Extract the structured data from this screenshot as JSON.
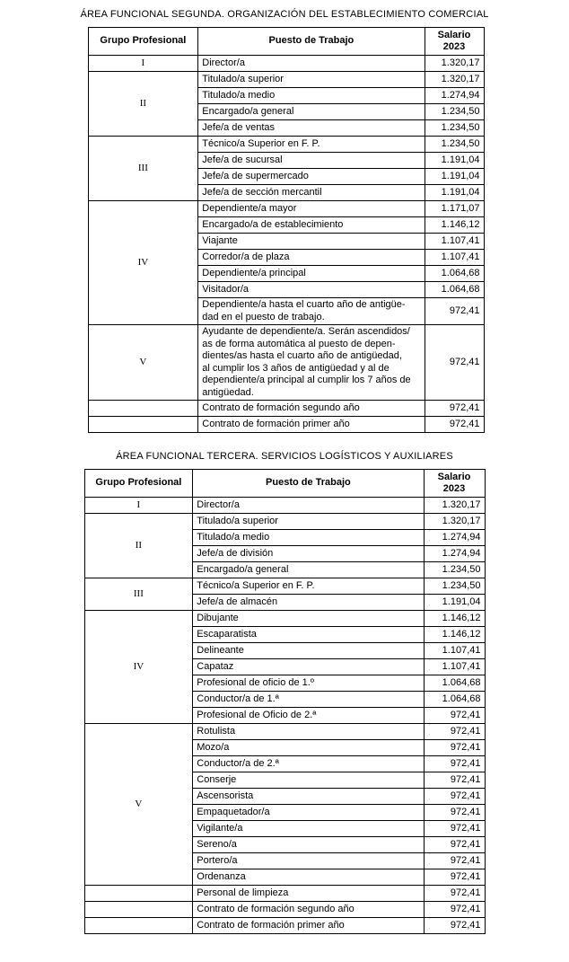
{
  "sections": [
    {
      "title": "ÁREA FUNCIONAL SEGUNDA. ORGANIZACIÓN DEL ESTABLECIMIENTO COMERCIAL",
      "headers": [
        "Grupo Profesional",
        "Puesto de Trabajo",
        "Salario\n2023"
      ],
      "groups": [
        {
          "group": "I",
          "rows": [
            [
              "Director/a",
              "1.320,17"
            ]
          ]
        },
        {
          "group": "II",
          "rows": [
            [
              "Titulado/a superior",
              "1.320,17"
            ],
            [
              "Titulado/a medio",
              "1.274,94"
            ],
            [
              "Encargado/a general",
              "1.234,50"
            ],
            [
              "Jefe/a de ventas",
              "1.234,50"
            ]
          ]
        },
        {
          "group": "III",
          "rows": [
            [
              "Técnico/a Superior en F. P.",
              "1.234,50"
            ],
            [
              "Jefe/a de sucursal",
              "1.191,04"
            ],
            [
              "Jefe/a de supermercado",
              "1.191,04"
            ],
            [
              "Jefe/a de sección mercantil",
              "1.191,04"
            ]
          ]
        },
        {
          "group": "IV",
          "rows": [
            [
              "Dependiente/a mayor",
              "1.171,07"
            ],
            [
              "Encargado/a de establecimiento",
              "1.146,12"
            ],
            [
              "Viajante",
              "1.107,41"
            ],
            [
              "Corredor/a de plaza",
              "1.107,41"
            ],
            [
              "Dependiente/a principal",
              "1.064,68"
            ],
            [
              "Visitador/a",
              "1.064,68"
            ],
            [
              "Dependiente/a hasta el cuarto año de antigüe-\ndad en el puesto de trabajo.",
              "972,41"
            ]
          ]
        },
        {
          "group": "V",
          "rows": [
            [
              "Ayudante de dependiente/a. Serán ascendidos/\nas de forma automática al puesto de depen-\ndientes/as hasta el cuarto año de antigüedad,\nal cumplir los 3 años de antigüedad y al de\ndependiente/a principal al cumplir los 7 años de\nantigüedad.",
              "972,41"
            ]
          ]
        },
        {
          "group": "",
          "rows": [
            [
              "Contrato de formación segundo año",
              "972,41"
            ]
          ]
        },
        {
          "group": "",
          "rows": [
            [
              "Contrato de formación primer año",
              "972,41"
            ]
          ]
        }
      ]
    },
    {
      "title": "ÁREA FUNCIONAL TERCERA. SERVICIOS LOGÍSTICOS Y AUXILIARES",
      "headers": [
        "Grupo Profesional",
        "Puesto de Trabajo",
        "Salario\n2023"
      ],
      "groups": [
        {
          "group": "I",
          "rows": [
            [
              "Director/a",
              "1.320,17"
            ]
          ]
        },
        {
          "group": "II",
          "rows": [
            [
              "Titulado/a superior",
              "1.320,17"
            ],
            [
              "Titulado/a medio",
              "1.274,94"
            ],
            [
              "Jefe/a de división",
              "1.274,94"
            ],
            [
              "Encargado/a general",
              "1.234,50"
            ]
          ]
        },
        {
          "group": "III",
          "rows": [
            [
              "Técnico/a Superior en F. P.",
              "1.234,50"
            ],
            [
              "Jefe/a de almacén",
              "1.191,04"
            ]
          ]
        },
        {
          "group": "IV",
          "rows": [
            [
              "Dibujante",
              "1.146,12"
            ],
            [
              "Escaparatista",
              "1.146,12"
            ],
            [
              "Delineante",
              "1.107,41"
            ],
            [
              "Capataz",
              "1.107,41"
            ],
            [
              "Profesional de oficio de 1.º",
              "1.064,68"
            ],
            [
              "Conductor/a de 1.ª",
              "1.064,68"
            ],
            [
              "Profesional de Oficio de 2.ª",
              "972,41"
            ]
          ]
        },
        {
          "group": "V",
          "rows": [
            [
              "Rotulista",
              "972,41"
            ],
            [
              "Mozo/a",
              "972,41"
            ],
            [
              "Conductor/a de 2.ª",
              "972,41"
            ],
            [
              "Conserje",
              "972,41"
            ],
            [
              "Ascensorista",
              "972,41"
            ],
            [
              "Empaquetador/a",
              "972,41"
            ],
            [
              "Vigilante/a",
              "972,41"
            ],
            [
              "Sereno/a",
              "972,41"
            ],
            [
              "Portero/a",
              "972,41"
            ],
            [
              "Ordenanza",
              "972,41"
            ]
          ]
        },
        {
          "group": "",
          "rows": [
            [
              "Personal de limpieza",
              "972,41"
            ]
          ]
        },
        {
          "group": "",
          "rows": [
            [
              "Contrato de formación segundo año",
              "972,41"
            ]
          ]
        },
        {
          "group": "",
          "rows": [
            [
              "Contrato de formación primer año",
              "972,41"
            ]
          ]
        }
      ]
    }
  ]
}
